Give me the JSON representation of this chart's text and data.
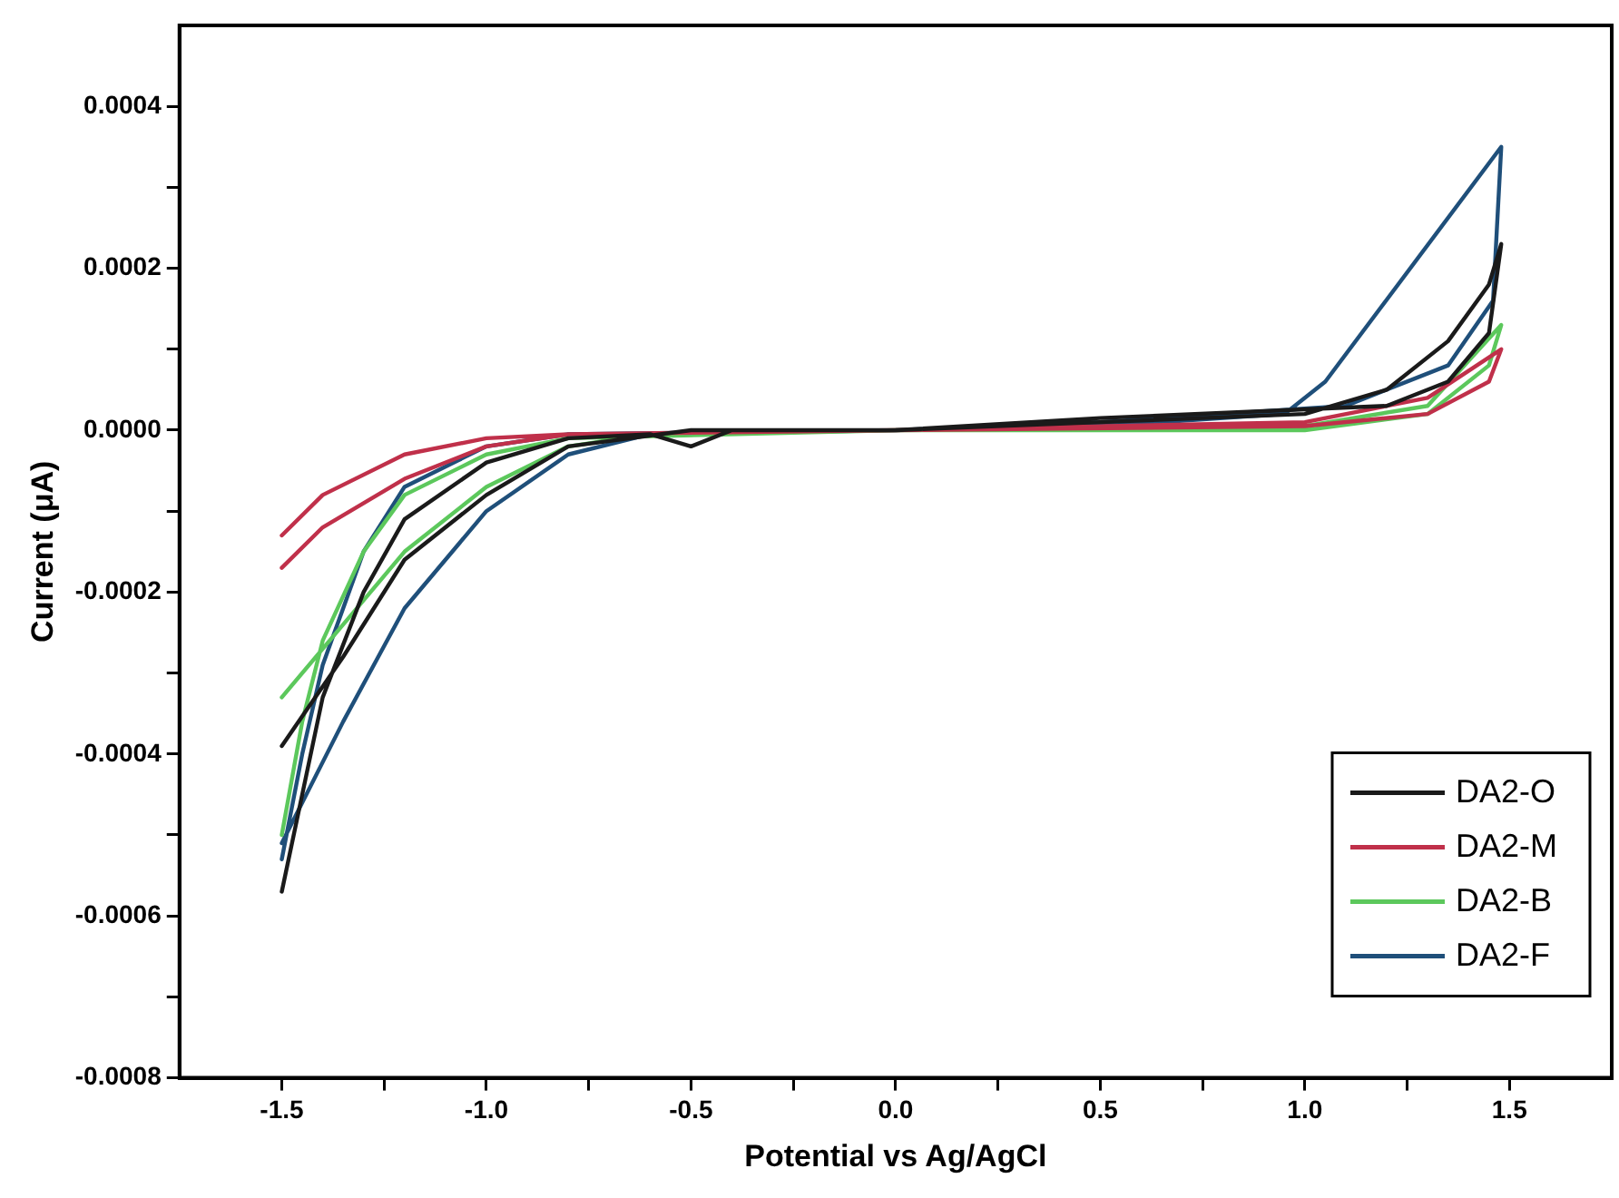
{
  "chart_data": {
    "type": "line",
    "xlabel": "Potential vs Ag/AgCl",
    "ylabel": "Current (μA)",
    "xlim": [
      -1.75,
      1.75
    ],
    "ylim": [
      -0.0008,
      0.0005
    ],
    "xticks": [
      {
        "value": -1.5,
        "label": "-1.5"
      },
      {
        "value": -1.25,
        "label": null
      },
      {
        "value": -1,
        "label": "-1.0"
      },
      {
        "value": -0.75,
        "label": null
      },
      {
        "value": -0.5,
        "label": "-0.5"
      },
      {
        "value": -0.25,
        "label": null
      },
      {
        "value": 0,
        "label": "0.0"
      },
      {
        "value": 0.25,
        "label": null
      },
      {
        "value": 0.5,
        "label": "0.5"
      },
      {
        "value": 0.75,
        "label": null
      },
      {
        "value": 1,
        "label": "1.0"
      },
      {
        "value": 1.25,
        "label": null
      },
      {
        "value": 1.5,
        "label": "1.5"
      }
    ],
    "yticks": [
      {
        "value": -0.0008,
        "label": "-0.0008"
      },
      {
        "value": -0.0007,
        "label": null
      },
      {
        "value": -0.0006,
        "label": "-0.0006"
      },
      {
        "value": -0.0005,
        "label": null
      },
      {
        "value": -0.0004,
        "label": "-0.0004"
      },
      {
        "value": -0.0003,
        "label": null
      },
      {
        "value": -0.0002,
        "label": "-0.0002"
      },
      {
        "value": -0.0001,
        "label": null
      },
      {
        "value": 0,
        "label": "0.0000"
      },
      {
        "value": 0.0001,
        "label": null
      },
      {
        "value": 0.0002,
        "label": "0.0002"
      },
      {
        "value": 0.0003,
        "label": null
      },
      {
        "value": 0.0004,
        "label": "0.0004"
      }
    ],
    "grid": false,
    "legend": "bottom right",
    "marker": "none",
    "line_style": "solid",
    "series": [
      {
        "name": "DA2-O",
        "color": "#1a1a1a",
        "x": [
          -1.5,
          -1.45,
          -1.4,
          -1.3,
          -1.2,
          -1.0,
          -0.8,
          -0.6,
          -0.5,
          -0.4,
          0,
          0.5,
          1.0,
          1.2,
          1.35,
          1.45,
          1.48,
          1.45,
          1.35,
          1.2,
          0.5,
          0,
          -0.5,
          -0.8,
          -1.0,
          -1.2,
          -1.35,
          -1.5
        ],
        "values": [
          -0.00057,
          -0.00045,
          -0.00033,
          -0.0002,
          -0.00011,
          -4e-05,
          -1e-05,
          -5e-06,
          -2e-05,
          0,
          0,
          1e-05,
          2e-05,
          5e-05,
          0.00011,
          0.00018,
          0.00023,
          0.00012,
          6e-05,
          3e-05,
          1.5e-05,
          0,
          0,
          -2e-05,
          -8e-05,
          -0.00016,
          -0.00028,
          -0.00039
        ]
      },
      {
        "name": "DA2-M",
        "color": "#c0304a",
        "x": [
          -1.5,
          -1.4,
          -1.2,
          -1.0,
          -0.8,
          0,
          1.0,
          1.3,
          1.48,
          1.45,
          1.3,
          1.0,
          0,
          -0.8,
          -1.0,
          -1.2,
          -1.4,
          -1.5
        ],
        "values": [
          -0.00017,
          -0.00012,
          -6e-05,
          -2e-05,
          -5e-06,
          0,
          1e-05,
          4e-05,
          0.0001,
          6e-05,
          2e-05,
          5e-06,
          0,
          -5e-06,
          -1e-05,
          -3e-05,
          -8e-05,
          -0.00013
        ]
      },
      {
        "name": "DA2-B",
        "color": "#5cc85c",
        "x": [
          -1.5,
          -1.45,
          -1.4,
          -1.3,
          -1.2,
          -1.0,
          -0.8,
          0,
          1.0,
          1.3,
          1.48,
          1.45,
          1.3,
          1.0,
          0,
          -0.6,
          -0.8,
          -1.0,
          -1.2,
          -1.35,
          -1.5
        ],
        "values": [
          -0.0005,
          -0.00036,
          -0.00026,
          -0.00015,
          -8e-05,
          -3e-05,
          -1e-05,
          0,
          5e-06,
          3e-05,
          0.00013,
          8e-05,
          2e-05,
          0,
          0,
          -5e-06,
          -2e-05,
          -7e-05,
          -0.00015,
          -0.00024,
          -0.00033
        ]
      },
      {
        "name": "DA2-F",
        "color": "#1f4f7a",
        "x": [
          -1.5,
          -1.45,
          -1.4,
          -1.3,
          -1.2,
          -1.0,
          -0.8,
          0,
          0.5,
          0.95,
          1.05,
          1.48,
          1.46,
          1.35,
          1.1,
          0.5,
          0,
          -0.6,
          -0.8,
          -1.0,
          -1.2,
          -1.35,
          -1.5
        ],
        "values": [
          -0.00053,
          -0.0004,
          -0.00029,
          -0.00015,
          -7e-05,
          -2e-05,
          -5e-06,
          0,
          5e-06,
          2e-05,
          6e-05,
          0.00035,
          0.00016,
          8e-05,
          3e-05,
          1e-05,
          0,
          -5e-06,
          -3e-05,
          -0.0001,
          -0.00022,
          -0.00036,
          -0.00051
        ]
      }
    ]
  }
}
